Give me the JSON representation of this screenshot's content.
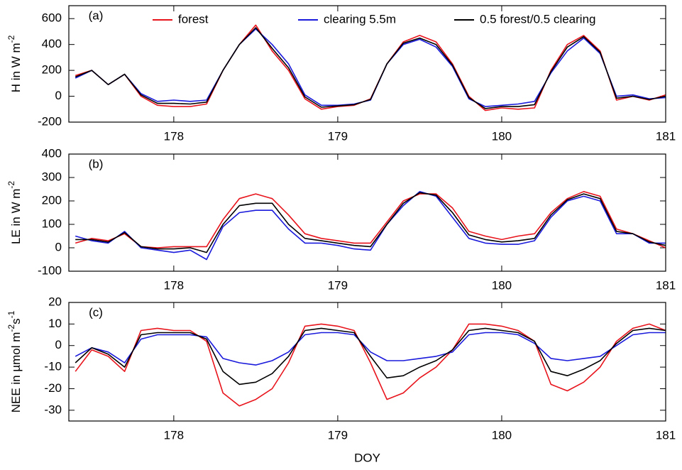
{
  "chart_data": [
    {
      "type": "line",
      "panel_label": "(a)",
      "ylabel": [
        "H in W m",
        "-2"
      ],
      "x": [
        177.4,
        177.5,
        177.6,
        177.7,
        177.8,
        177.9,
        178.0,
        178.1,
        178.2,
        178.3,
        178.4,
        178.5,
        178.6,
        178.7,
        178.8,
        178.9,
        179.0,
        179.1,
        179.2,
        179.3,
        179.4,
        179.5,
        179.6,
        179.7,
        179.8,
        179.9,
        180.0,
        180.1,
        180.2,
        180.3,
        180.4,
        180.5,
        180.6,
        180.7,
        180.8,
        180.9,
        181.0
      ],
      "xlim": [
        177.36,
        181
      ],
      "xticks": [
        178,
        179,
        180,
        181
      ],
      "ylim": [
        -200,
        700
      ],
      "yticks": [
        -200,
        0,
        200,
        400,
        600
      ],
      "series": [
        {
          "name": "forest",
          "color": "#e8141c",
          "values": [
            160,
            200,
            90,
            170,
            0,
            -70,
            -80,
            -80,
            -60,
            200,
            400,
            550,
            350,
            200,
            -20,
            -100,
            -80,
            -70,
            -20,
            250,
            420,
            470,
            420,
            250,
            0,
            -110,
            -90,
            -100,
            -90,
            200,
            400,
            470,
            350,
            -30,
            0,
            -30,
            10
          ]
        },
        {
          "name": "clearing 5.5m",
          "color": "#1a1adc",
          "values": [
            140,
            200,
            90,
            170,
            20,
            -40,
            -30,
            -40,
            -30,
            200,
            400,
            520,
            400,
            250,
            10,
            -70,
            -70,
            -60,
            -30,
            250,
            400,
            440,
            380,
            230,
            -20,
            -80,
            -70,
            -60,
            -40,
            180,
            350,
            450,
            330,
            0,
            10,
            -20,
            -10
          ]
        },
        {
          "name": "0.5 forest/0.5 clearing",
          "color": "#000000",
          "values": [
            150,
            200,
            90,
            170,
            10,
            -55,
            -55,
            -60,
            -45,
            200,
            400,
            530,
            370,
            220,
            -5,
            -85,
            -75,
            -65,
            -25,
            250,
            410,
            450,
            400,
            240,
            -10,
            -95,
            -80,
            -80,
            -65,
            190,
            380,
            460,
            340,
            -15,
            0,
            -25,
            0
          ]
        }
      ]
    },
    {
      "type": "line",
      "panel_label": "(b)",
      "ylabel": [
        "LE in W m",
        "-2"
      ],
      "x": [
        177.4,
        177.5,
        177.6,
        177.7,
        177.8,
        177.9,
        178.0,
        178.1,
        178.2,
        178.3,
        178.4,
        178.5,
        178.6,
        178.7,
        178.8,
        178.9,
        179.0,
        179.1,
        179.2,
        179.3,
        179.4,
        179.5,
        179.6,
        179.7,
        179.8,
        179.9,
        180.0,
        180.1,
        180.2,
        180.3,
        180.4,
        180.5,
        180.6,
        180.7,
        180.8,
        180.9,
        181.0
      ],
      "xlim": [
        177.36,
        181
      ],
      "xticks": [
        178,
        179,
        180,
        181
      ],
      "ylim": [
        -100,
        400
      ],
      "yticks": [
        -100,
        0,
        100,
        200,
        300,
        400
      ],
      "series": [
        {
          "color": "#e8141c",
          "values": [
            20,
            40,
            30,
            60,
            5,
            0,
            5,
            5,
            5,
            120,
            210,
            230,
            210,
            140,
            60,
            40,
            30,
            20,
            20,
            110,
            200,
            230,
            230,
            170,
            70,
            50,
            35,
            50,
            60,
            150,
            210,
            240,
            220,
            80,
            60,
            30,
            0
          ]
        },
        {
          "color": "#1a1adc",
          "values": [
            50,
            30,
            20,
            70,
            0,
            -10,
            -20,
            -10,
            -50,
            90,
            150,
            160,
            160,
            80,
            20,
            20,
            10,
            -5,
            -10,
            100,
            180,
            240,
            220,
            130,
            40,
            20,
            15,
            15,
            30,
            130,
            200,
            220,
            200,
            60,
            60,
            20,
            20
          ]
        },
        {
          "color": "#000000",
          "values": [
            35,
            35,
            25,
            65,
            5,
            -5,
            -5,
            0,
            -20,
            100,
            180,
            190,
            190,
            100,
            40,
            30,
            20,
            10,
            5,
            100,
            190,
            235,
            225,
            150,
            55,
            35,
            25,
            30,
            40,
            140,
            205,
            230,
            210,
            70,
            60,
            25,
            10
          ]
        }
      ]
    },
    {
      "type": "line",
      "panel_label": "(c)",
      "ylabel": [
        "NEE in µmol m",
        "-2",
        "s",
        "-1"
      ],
      "xlabel": "DOY",
      "x": [
        177.4,
        177.5,
        177.6,
        177.7,
        177.8,
        177.9,
        178.0,
        178.1,
        178.2,
        178.3,
        178.4,
        178.5,
        178.6,
        178.7,
        178.8,
        178.9,
        179.0,
        179.1,
        179.2,
        179.3,
        179.4,
        179.5,
        179.6,
        179.7,
        179.8,
        179.9,
        180.0,
        180.1,
        180.2,
        180.3,
        180.4,
        180.5,
        180.6,
        180.7,
        180.8,
        180.9,
        181.0
      ],
      "xlim": [
        177.36,
        181
      ],
      "xticks": [
        178,
        179,
        180,
        181
      ],
      "ylim": [
        -35,
        20
      ],
      "yticks": [
        -30,
        -20,
        -10,
        0,
        10,
        20
      ],
      "series": [
        {
          "color": "#e8141c",
          "values": [
            -12,
            -2,
            -5,
            -12,
            7,
            8,
            7,
            7,
            2,
            -22,
            -28,
            -25,
            -20,
            -8,
            9,
            10,
            9,
            7,
            -8,
            -25,
            -22,
            -15,
            -10,
            -2,
            10,
            10,
            9,
            7,
            2,
            -18,
            -21,
            -17,
            -10,
            2,
            8,
            10,
            7
          ]
        },
        {
          "color": "#1a1adc",
          "values": [
            -5,
            -1,
            -3,
            -8,
            3,
            5,
            5,
            5,
            4,
            -6,
            -8,
            -9,
            -7,
            -3,
            5,
            6,
            6,
            5,
            -3,
            -7,
            -7,
            -6,
            -5,
            -3,
            5,
            6,
            6,
            5,
            1,
            -6,
            -7,
            -6,
            -5,
            0,
            5,
            6,
            6
          ]
        },
        {
          "color": "#000000",
          "values": [
            -8,
            -1,
            -4,
            -10,
            5,
            6,
            6,
            6,
            3,
            -12,
            -18,
            -17,
            -13,
            -5,
            7,
            8,
            7,
            6,
            -5,
            -15,
            -14,
            -10,
            -7,
            -2,
            7,
            8,
            7,
            6,
            2,
            -12,
            -14,
            -11,
            -7,
            1,
            7,
            8,
            7
          ]
        }
      ]
    }
  ]
}
